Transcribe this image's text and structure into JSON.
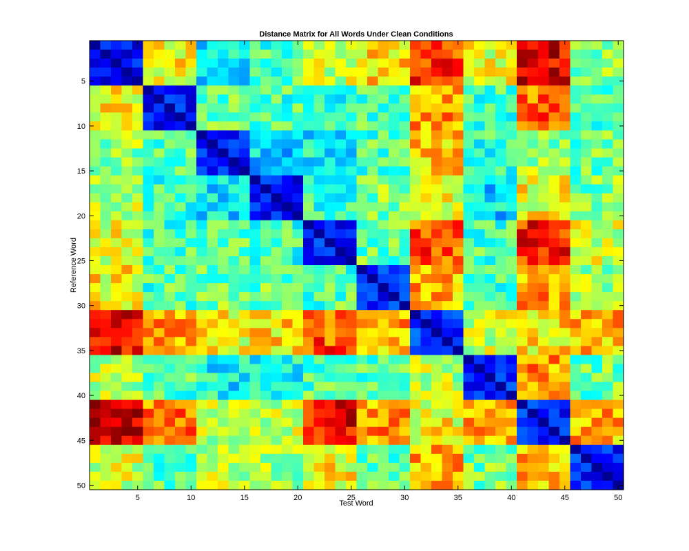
{
  "chart_data": {
    "type": "heatmap",
    "title": "Distance Matrix for All Words Under Clean Conditions",
    "xlabel": "Test Word",
    "ylabel": "Reference Word",
    "xlim": [
      0.5,
      50.5
    ],
    "ylim": [
      0.5,
      50.5
    ],
    "y_direction": "reverse",
    "colormap": "jet",
    "value_range": [
      0,
      1
    ],
    "xticks": [
      5,
      10,
      15,
      20,
      25,
      30,
      35,
      40,
      45,
      50
    ],
    "yticks": [
      5,
      10,
      15,
      20,
      25,
      30,
      35,
      40,
      45,
      50
    ],
    "xtick_labels": [
      "5",
      "10",
      "15",
      "20",
      "25",
      "30",
      "35",
      "40",
      "45",
      "50"
    ],
    "ytick_labels": [
      "5",
      "10",
      "15",
      "20",
      "25",
      "30",
      "35",
      "40",
      "45",
      "50"
    ],
    "n_words": 50,
    "block_size": 5,
    "block_values": [
      [
        0.13,
        0.62,
        0.38,
        0.45,
        0.58,
        0.65,
        0.82,
        0.6,
        0.9,
        0.52
      ],
      [
        0.62,
        0.14,
        0.48,
        0.45,
        0.42,
        0.45,
        0.72,
        0.45,
        0.78,
        0.45
      ],
      [
        0.52,
        0.46,
        0.14,
        0.33,
        0.38,
        0.45,
        0.68,
        0.42,
        0.52,
        0.48
      ],
      [
        0.55,
        0.42,
        0.35,
        0.13,
        0.42,
        0.5,
        0.62,
        0.35,
        0.62,
        0.5
      ],
      [
        0.6,
        0.45,
        0.46,
        0.43,
        0.15,
        0.48,
        0.8,
        0.45,
        0.85,
        0.58
      ],
      [
        0.63,
        0.45,
        0.48,
        0.48,
        0.45,
        0.16,
        0.7,
        0.45,
        0.72,
        0.52
      ],
      [
        0.88,
        0.72,
        0.62,
        0.65,
        0.8,
        0.7,
        0.17,
        0.58,
        0.65,
        0.7
      ],
      [
        0.55,
        0.45,
        0.38,
        0.4,
        0.45,
        0.45,
        0.55,
        0.17,
        0.72,
        0.48
      ],
      [
        0.92,
        0.75,
        0.55,
        0.58,
        0.88,
        0.72,
        0.62,
        0.72,
        0.15,
        0.7
      ],
      [
        0.58,
        0.45,
        0.55,
        0.52,
        0.62,
        0.45,
        0.7,
        0.48,
        0.7,
        0.15
      ]
    ]
  }
}
